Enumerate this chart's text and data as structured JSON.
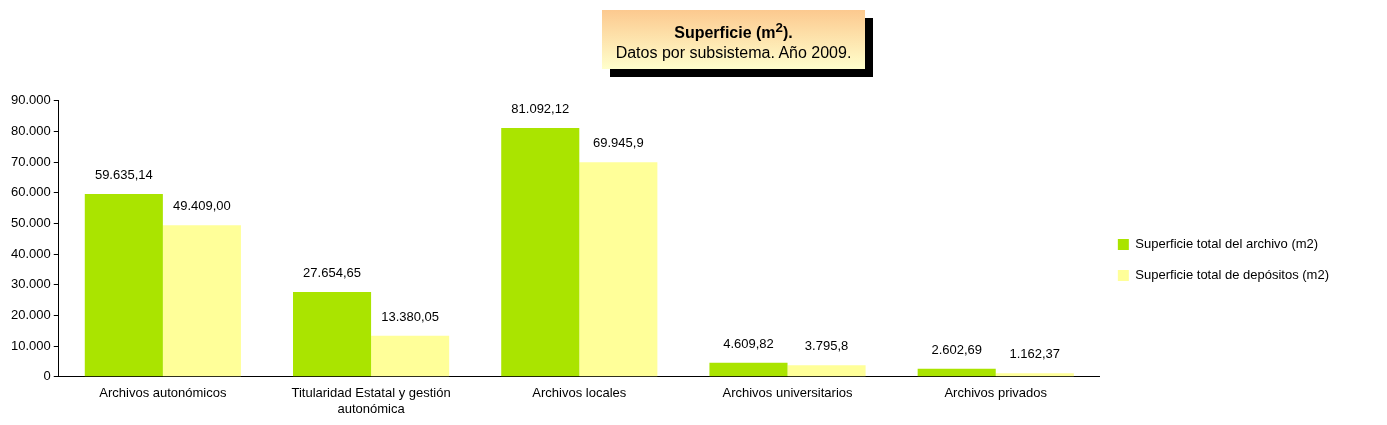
{
  "chart_data": {
    "type": "bar",
    "title": "Superficie (m$^{2}$).",
    "subtitle": "Datos por subsistema. Año 2009.",
    "categories": [
      "Archivos autonómicos",
      "Titularidad Estatal y gestión autonómica",
      "Archivos locales",
      "Archivos universitarios",
      "Archivos privados"
    ],
    "series": [
      {
        "name": "Superficie total del archivo (m2)",
        "color": "#aae400",
        "values": [
          59635.14,
          27654.65,
          81092.12,
          4609.82,
          2602.69
        ],
        "value_labels": [
          "59.635,14",
          "27.654,65",
          "81.092,12",
          "4.609,82",
          "2.602,69"
        ]
      },
      {
        "name": "Superficie total de depósitos (m2)",
        "color": "#ffff99",
        "values": [
          49409.0,
          13380.05,
          69945.9,
          3795.8,
          1162.37
        ],
        "value_labels": [
          "49.409,00",
          "13.380,05",
          "69.945,9",
          "3.795,8",
          "1.162,37"
        ]
      }
    ],
    "ylim": [
      0,
      90000
    ],
    "yticks": [
      {
        "value": 0,
        "label": "0"
      },
      {
        "value": 10000,
        "label": "10.000"
      },
      {
        "value": 20000,
        "label": "20.000"
      },
      {
        "value": 30000,
        "label": "30.000"
      },
      {
        "value": 40000,
        "label": "40.000"
      },
      {
        "value": 50000,
        "label": "50.000"
      },
      {
        "value": 60000,
        "label": "60.000"
      },
      {
        "value": 70000,
        "label": "70.000"
      },
      {
        "value": 80000,
        "label": "80.000"
      },
      {
        "value": 90000,
        "label": "90.000"
      }
    ],
    "grid": false,
    "legend": "right"
  }
}
